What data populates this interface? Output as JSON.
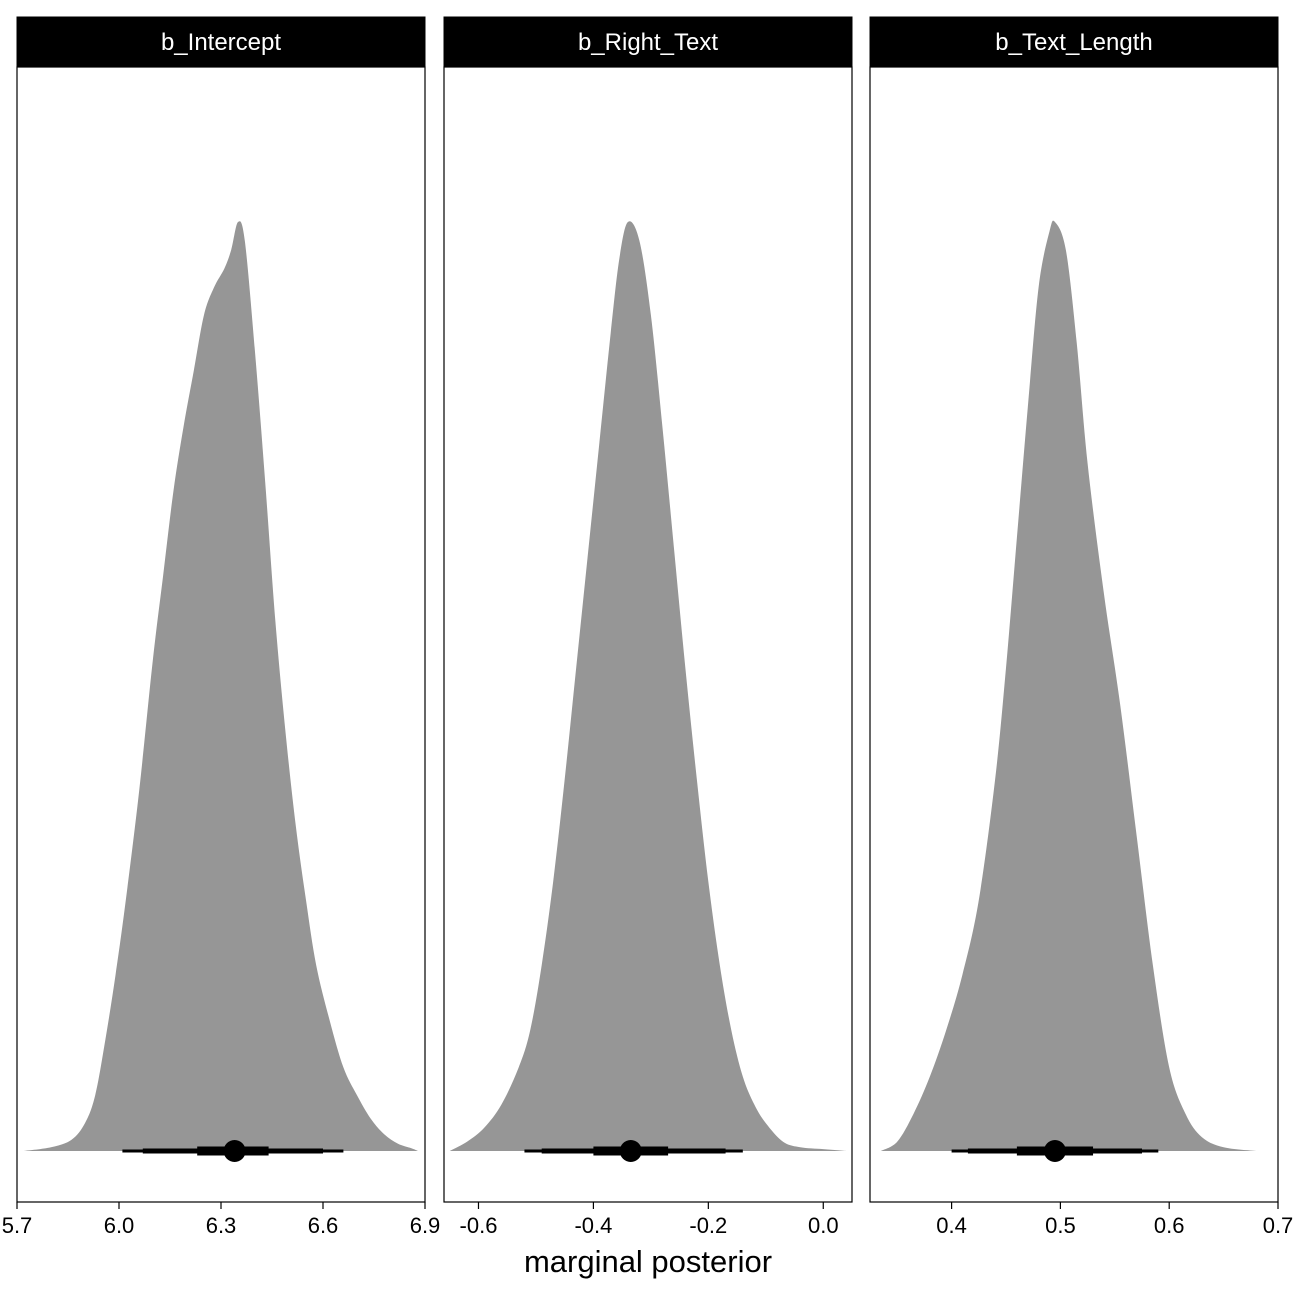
{
  "chart_data": {
    "type": "density",
    "xlabel": "marginal posterior",
    "ylabel": "",
    "grid": false,
    "legend": "none",
    "fill_color": "#969696",
    "interval_color": "#000000",
    "facets": [
      {
        "name": "b_Intercept",
        "xlim": [
          5.7,
          6.9
        ],
        "ticks": [
          5.7,
          6.0,
          6.3,
          6.6,
          6.9
        ],
        "tick_labels": [
          "5.7",
          "6.0",
          "6.3",
          "6.6",
          "6.9"
        ],
        "median": 6.34,
        "inner_interval": [
          6.23,
          6.44
        ],
        "mid_interval": [
          6.07,
          6.6
        ],
        "outer_interval": [
          6.01,
          6.66
        ],
        "density": [
          [
            5.72,
            0.0
          ],
          [
            5.8,
            0.004
          ],
          [
            5.86,
            0.012
          ],
          [
            5.9,
            0.03
          ],
          [
            5.93,
            0.06
          ],
          [
            5.96,
            0.12
          ],
          [
            5.99,
            0.19
          ],
          [
            6.02,
            0.27
          ],
          [
            6.06,
            0.39
          ],
          [
            6.1,
            0.53
          ],
          [
            6.13,
            0.62
          ],
          [
            6.16,
            0.71
          ],
          [
            6.19,
            0.78
          ],
          [
            6.22,
            0.84
          ],
          [
            6.25,
            0.9
          ],
          [
            6.28,
            0.93
          ],
          [
            6.31,
            0.95
          ],
          [
            6.33,
            0.97
          ],
          [
            6.35,
            1.0
          ],
          [
            6.37,
            0.98
          ],
          [
            6.4,
            0.86
          ],
          [
            6.43,
            0.72
          ],
          [
            6.46,
            0.57
          ],
          [
            6.49,
            0.45
          ],
          [
            6.52,
            0.35
          ],
          [
            6.55,
            0.27
          ],
          [
            6.58,
            0.2
          ],
          [
            6.62,
            0.14
          ],
          [
            6.66,
            0.09
          ],
          [
            6.7,
            0.06
          ],
          [
            6.74,
            0.035
          ],
          [
            6.78,
            0.018
          ],
          [
            6.82,
            0.008
          ],
          [
            6.86,
            0.003
          ],
          [
            6.88,
            0.0
          ]
        ]
      },
      {
        "name": "b_Right_Text",
        "xlim": [
          -0.66,
          0.05
        ],
        "ticks": [
          -0.6,
          -0.4,
          -0.2,
          0.0
        ],
        "tick_labels": [
          "-0.6",
          "-0.4",
          "-0.2",
          "0.0"
        ],
        "median": -0.335,
        "inner_interval": [
          -0.4,
          -0.27
        ],
        "mid_interval": [
          -0.49,
          -0.17
        ],
        "outer_interval": [
          -0.52,
          -0.14
        ],
        "density": [
          [
            -0.65,
            0.0
          ],
          [
            -0.62,
            0.01
          ],
          [
            -0.59,
            0.025
          ],
          [
            -0.56,
            0.05
          ],
          [
            -0.53,
            0.09
          ],
          [
            -0.51,
            0.13
          ],
          [
            -0.49,
            0.2
          ],
          [
            -0.47,
            0.29
          ],
          [
            -0.45,
            0.4
          ],
          [
            -0.43,
            0.52
          ],
          [
            -0.41,
            0.64
          ],
          [
            -0.39,
            0.76
          ],
          [
            -0.37,
            0.88
          ],
          [
            -0.355,
            0.96
          ],
          [
            -0.34,
            1.0
          ],
          [
            -0.32,
            0.98
          ],
          [
            -0.3,
            0.9
          ],
          [
            -0.28,
            0.78
          ],
          [
            -0.26,
            0.65
          ],
          [
            -0.24,
            0.52
          ],
          [
            -0.22,
            0.4
          ],
          [
            -0.2,
            0.29
          ],
          [
            -0.18,
            0.2
          ],
          [
            -0.16,
            0.13
          ],
          [
            -0.14,
            0.08
          ],
          [
            -0.12,
            0.05
          ],
          [
            -0.1,
            0.03
          ],
          [
            -0.07,
            0.01
          ],
          [
            -0.04,
            0.004
          ],
          [
            0.0,
            0.002
          ],
          [
            0.04,
            0.0
          ]
        ]
      },
      {
        "name": "b_Text_Length",
        "xlim": [
          0.325,
          0.7
        ],
        "ticks": [
          0.4,
          0.5,
          0.6,
          0.7
        ],
        "tick_labels": [
          "0.4",
          "0.5",
          "0.6",
          "0.7"
        ],
        "median": 0.495,
        "inner_interval": [
          0.46,
          0.53
        ],
        "mid_interval": [
          0.415,
          0.575
        ],
        "outer_interval": [
          0.4,
          0.59
        ],
        "density": [
          [
            0.335,
            0.0
          ],
          [
            0.35,
            0.01
          ],
          [
            0.365,
            0.04
          ],
          [
            0.38,
            0.08
          ],
          [
            0.395,
            0.13
          ],
          [
            0.41,
            0.19
          ],
          [
            0.425,
            0.27
          ],
          [
            0.44,
            0.4
          ],
          [
            0.45,
            0.52
          ],
          [
            0.46,
            0.66
          ],
          [
            0.47,
            0.8
          ],
          [
            0.48,
            0.93
          ],
          [
            0.49,
            0.99
          ],
          [
            0.495,
            1.0
          ],
          [
            0.505,
            0.97
          ],
          [
            0.515,
            0.87
          ],
          [
            0.525,
            0.74
          ],
          [
            0.54,
            0.6
          ],
          [
            0.555,
            0.48
          ],
          [
            0.57,
            0.34
          ],
          [
            0.585,
            0.2
          ],
          [
            0.6,
            0.09
          ],
          [
            0.615,
            0.04
          ],
          [
            0.63,
            0.015
          ],
          [
            0.65,
            0.004
          ],
          [
            0.68,
            0.0
          ]
        ]
      }
    ]
  }
}
